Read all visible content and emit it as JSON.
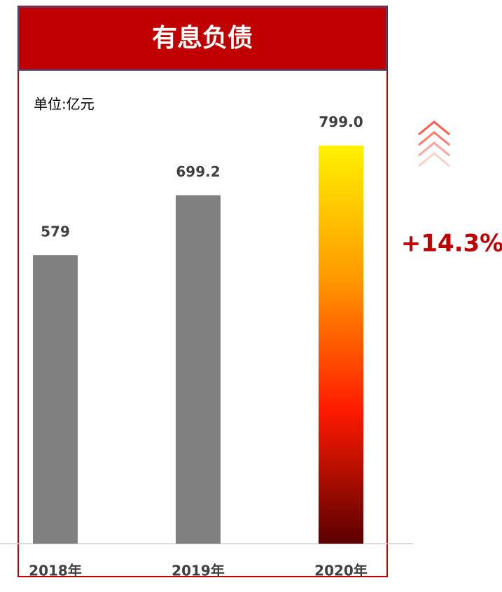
{
  "chart_data": {
    "type": "bar",
    "title": "有息负债",
    "subtitle": "单位:亿元",
    "categories": [
      "2018年",
      "2019年",
      "2020年"
    ],
    "values": [
      579,
      699.2,
      799
    ],
    "value_labels": [
      "579",
      "699.2",
      "799.0"
    ],
    "colors": [
      "#808080",
      "#808080",
      [
        "#fff200",
        "#ff9900",
        "#ff1a00",
        "#5a0000"
      ]
    ],
    "ylim": [
      0,
      800
    ],
    "annotation": "+14.3%"
  }
}
